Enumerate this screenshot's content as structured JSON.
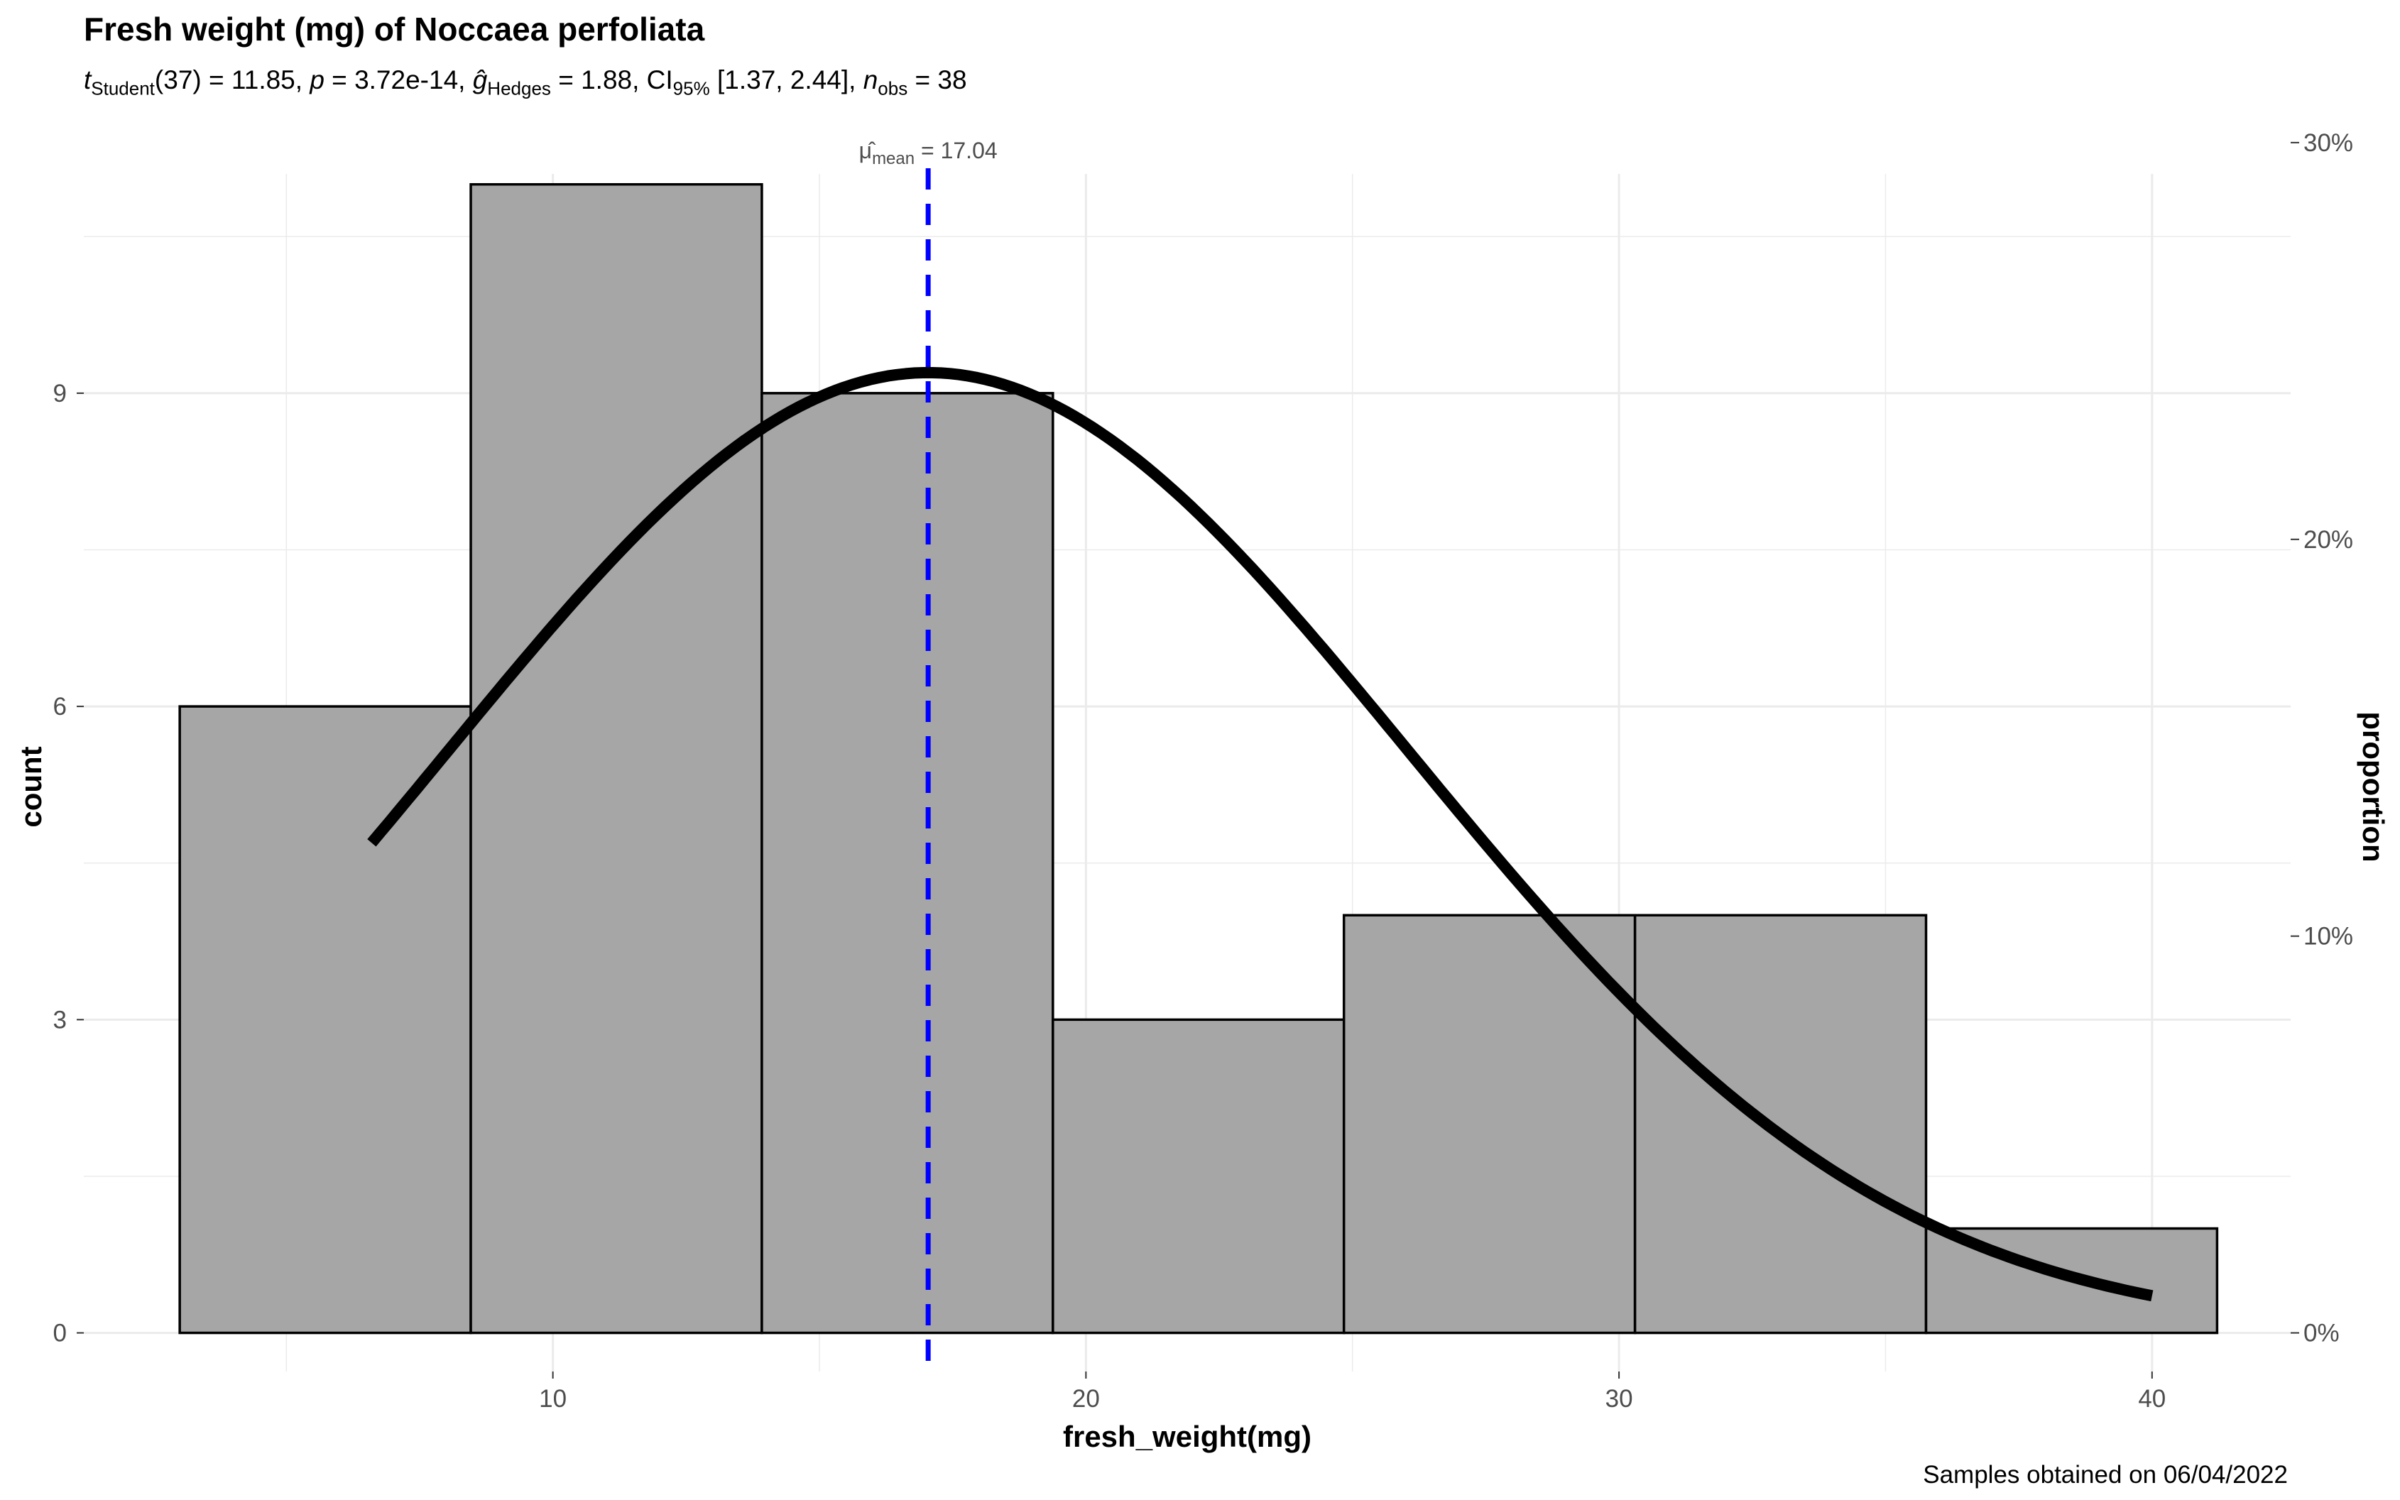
{
  "chart_data": {
    "type": "histogram",
    "title": "Fresh weight (mg) of Noccaea perfoliata",
    "subtitle": {
      "t_df": "37",
      "t_value": "11.85",
      "p_value": "3.72e-14",
      "g_hedges": "1.88",
      "ci95": "[1.37, 2.44]",
      "n_obs": "38"
    },
    "caption": "Samples obtained on 06/04/2022",
    "xlabel": "fresh_weight(mg)",
    "ylabel": "count",
    "y2label": "proportion",
    "xlim": [
      1.2,
      42.6
    ],
    "ylim": [
      -0.37,
      11.1
    ],
    "x_ticks": [
      10,
      20,
      30,
      40
    ],
    "x_tick_labels": [
      "10",
      "20",
      "30",
      "40"
    ],
    "y_ticks": [
      0,
      3,
      6,
      9
    ],
    "y_tick_labels": [
      "0",
      "3",
      "6",
      "9"
    ],
    "y2_ticks": [
      0,
      0.1,
      0.2,
      0.3
    ],
    "y2_tick_labels": [
      "0%",
      "10%",
      "20%",
      "30%"
    ],
    "bins": [
      {
        "x0": 3.0,
        "x1": 8.46,
        "count": 6
      },
      {
        "x0": 8.46,
        "x1": 13.92,
        "count": 11
      },
      {
        "x0": 13.92,
        "x1": 19.38,
        "count": 9
      },
      {
        "x0": 19.38,
        "x1": 24.84,
        "count": 3
      },
      {
        "x0": 24.84,
        "x1": 30.3,
        "count": 4
      },
      {
        "x0": 30.3,
        "x1": 35.76,
        "count": 4
      },
      {
        "x0": 35.76,
        "x1": 41.22,
        "count": 1
      }
    ],
    "density_curve": {
      "mean": 17.04,
      "sd": 9.0,
      "x_range": [
        6.6,
        40.0
      ],
      "total_n": 38,
      "binwidth": 5.46
    },
    "mean_line": {
      "x": 17.04,
      "label_value": "17.04"
    },
    "grid": true,
    "colors": {
      "bar_fill": "#a6a6a6",
      "bar_stroke": "#000000",
      "curve": "#000000",
      "mean_line": "#0000ff",
      "grid": "#ebebeb"
    }
  }
}
